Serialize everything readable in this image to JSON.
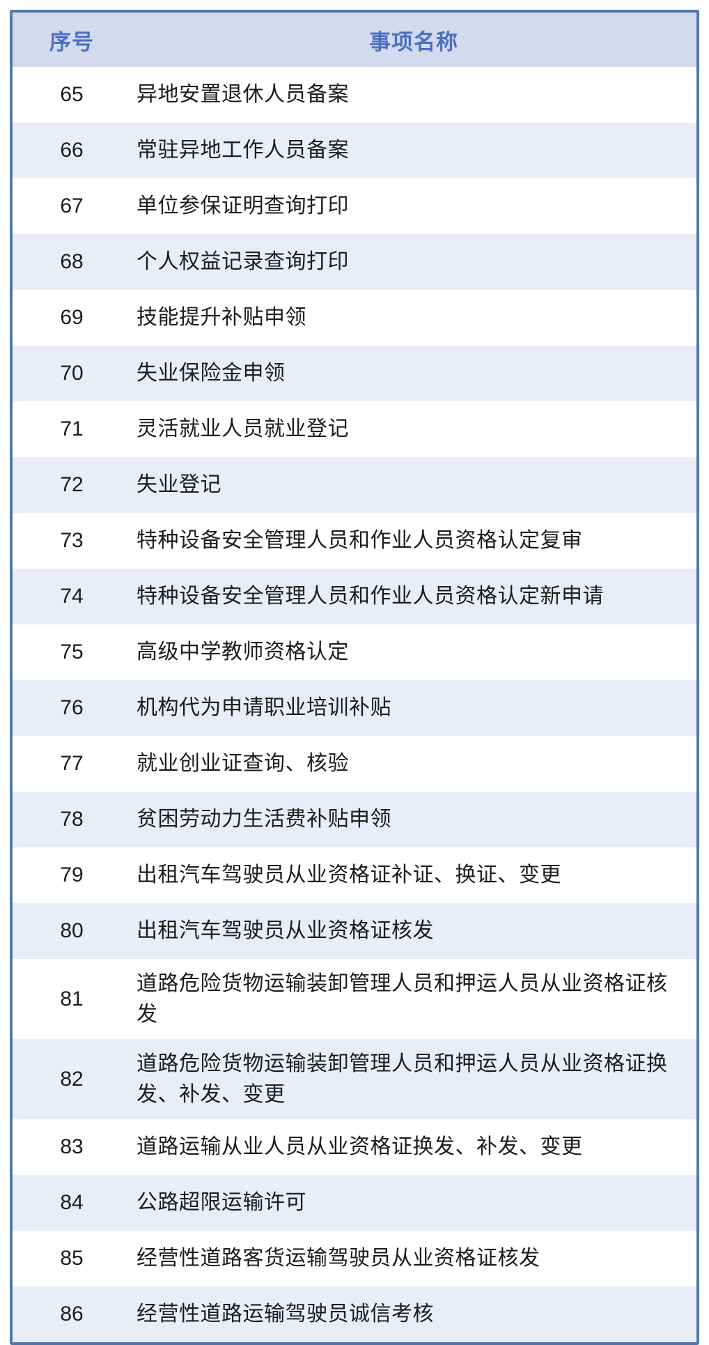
{
  "table": {
    "headers": {
      "index": "序号",
      "name": "事项名称"
    },
    "rows": [
      {
        "index": "65",
        "name": "异地安置退休人员备案"
      },
      {
        "index": "66",
        "name": "常驻异地工作人员备案"
      },
      {
        "index": "67",
        "name": "单位参保证明查询打印"
      },
      {
        "index": "68",
        "name": "个人权益记录查询打印"
      },
      {
        "index": "69",
        "name": "技能提升补贴申领"
      },
      {
        "index": "70",
        "name": "失业保险金申领"
      },
      {
        "index": "71",
        "name": "灵活就业人员就业登记"
      },
      {
        "index": "72",
        "name": "失业登记"
      },
      {
        "index": "73",
        "name": "特种设备安全管理人员和作业人员资格认定复审"
      },
      {
        "index": "74",
        "name": "特种设备安全管理人员和作业人员资格认定新申请"
      },
      {
        "index": "75",
        "name": "高级中学教师资格认定"
      },
      {
        "index": "76",
        "name": "机构代为申请职业培训补贴"
      },
      {
        "index": "77",
        "name": "就业创业证查询、核验"
      },
      {
        "index": "78",
        "name": "贫困劳动力生活费补贴申领"
      },
      {
        "index": "79",
        "name": "出租汽车驾驶员从业资格证补证、换证、变更"
      },
      {
        "index": "80",
        "name": "出租汽车驾驶员从业资格证核发"
      },
      {
        "index": "81",
        "name": "道路危险货物运输装卸管理人员和押运人员从业资格证核发"
      },
      {
        "index": "82",
        "name": "道路危险货物运输装卸管理人员和押运人员从业资格证换发、补发、变更"
      },
      {
        "index": "83",
        "name": "道路运输从业人员从业资格证换发、补发、变更"
      },
      {
        "index": "84",
        "name": "公路超限运输许可"
      },
      {
        "index": "85",
        "name": "经营性道路客货运输驾驶员从业资格证核发"
      },
      {
        "index": "86",
        "name": "经营性道路运输驾驶员诚信考核"
      }
    ]
  },
  "colors": {
    "border": "#5377ab",
    "header_bg": "#d4daee",
    "header_text": "#4a70c2",
    "row_alt_bg": "#e9edf8",
    "row_bg": "#ffffff",
    "body_text": "#1c1c1c"
  }
}
